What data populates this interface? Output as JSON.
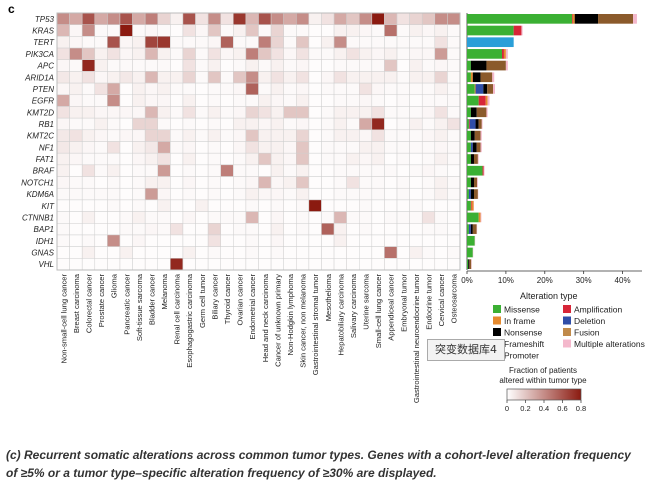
{
  "panel_label": "c",
  "caption": "(c) Recurrent somatic alterations across common tumor types. Genes with a cohort-level alteration frequency of ≥5% or a tumor type–specific alteration frequency of ≥30% are displayed.",
  "watermark_text": "突变数据库4",
  "chart_data": [
    {
      "type": "heatmap",
      "genes": [
        "TP53",
        "KRAS",
        "TERT",
        "PIK3CA",
        "APC",
        "ARID1A",
        "PTEN",
        "EGFR",
        "KMT2D",
        "RB1",
        "KMT2C",
        "NF1",
        "FAT1",
        "BRAF",
        "NOTCH1",
        "KDM6A",
        "KIT",
        "CTNNB1",
        "BAP1",
        "IDH1",
        "GNAS",
        "VHL"
      ],
      "tumor_types": [
        "Non-small-cell lung cancer",
        "Breast carcinoma",
        "Colorectal cancer",
        "Prostate cancer",
        "Glioma",
        "Pancreatic cancer",
        "Soft-tissue sarcoma",
        "Bladder cancer",
        "Melanoma",
        "Renal cell carcinoma",
        "Esophagogastric carcinoma",
        "Germ cell tumor",
        "Biliary cancer",
        "Thyroid cancer",
        "Ovarian cancer",
        "Endometrial cancer",
        "Head and neck carcinoma",
        "Cancer of unknown primary",
        "Non-Hodgkin lymphoma",
        "Skin cancer, non melanoma",
        "Gastrointestinal stromal tumor",
        "Mesothelioma",
        "Hepatobiliary carcinoma",
        "Salivary carcinoma",
        "Uterine sarcoma",
        "Small-cell lung cancer",
        "Appendiceal cancer",
        "Embryonal tumor",
        "Gastrointestinal neuroendocrine tumor",
        "Endocrine tumor",
        "Cervical cancer",
        "Osteosarcoma"
      ],
      "values": [
        [
          0.4,
          0.3,
          0.6,
          0.3,
          0.4,
          0.6,
          0.3,
          0.45,
          0.15,
          0.05,
          0.6,
          0.1,
          0.4,
          0.1,
          0.7,
          0.25,
          0.6,
          0.4,
          0.3,
          0.4,
          0.05,
          0.1,
          0.3,
          0.2,
          0.4,
          0.8,
          0.25,
          0.1,
          0.15,
          0.2,
          0.4,
          0.4
        ],
        [
          0.25,
          0.03,
          0.4,
          0.02,
          0.02,
          0.8,
          0.02,
          0.03,
          0.02,
          0.01,
          0.1,
          0.03,
          0.2,
          0.02,
          0.05,
          0.2,
          0.02,
          0.15,
          0.02,
          0.02,
          0.01,
          0.01,
          0.05,
          0.05,
          0.03,
          0.02,
          0.5,
          0.02,
          0.05,
          0.03,
          0.05,
          0.02
        ],
        [
          0.05,
          0.03,
          0.02,
          0.02,
          0.6,
          0.03,
          0.05,
          0.65,
          0.7,
          0.02,
          0.02,
          0.02,
          0.03,
          0.55,
          0.02,
          0.02,
          0.45,
          0.15,
          0.02,
          0.2,
          0.01,
          0.05,
          0.4,
          0.02,
          0.02,
          0.02,
          0.02,
          0.02,
          0.02,
          0.02,
          0.1,
          0.02
        ],
        [
          0.1,
          0.4,
          0.2,
          0.05,
          0.1,
          0.03,
          0.05,
          0.25,
          0.05,
          0.02,
          0.15,
          0.02,
          0.1,
          0.03,
          0.05,
          0.45,
          0.2,
          0.1,
          0.03,
          0.1,
          0.02,
          0.02,
          0.05,
          0.1,
          0.05,
          0.03,
          0.05,
          0.02,
          0.03,
          0.03,
          0.35,
          0.02
        ],
        [
          0.03,
          0.02,
          0.75,
          0.05,
          0.02,
          0.02,
          0.02,
          0.02,
          0.02,
          0.01,
          0.1,
          0.02,
          0.05,
          0.01,
          0.02,
          0.05,
          0.02,
          0.05,
          0.02,
          0.03,
          0.01,
          0.01,
          0.02,
          0.02,
          0.02,
          0.02,
          0.2,
          0.01,
          0.05,
          0.02,
          0.03,
          0.02
        ],
        [
          0.08,
          0.05,
          0.1,
          0.03,
          0.05,
          0.08,
          0.05,
          0.25,
          0.05,
          0.05,
          0.15,
          0.02,
          0.2,
          0.02,
          0.2,
          0.4,
          0.05,
          0.1,
          0.05,
          0.1,
          0.01,
          0.03,
          0.1,
          0.05,
          0.05,
          0.05,
          0.05,
          0.02,
          0.05,
          0.05,
          0.15,
          0.02
        ],
        [
          0.03,
          0.05,
          0.02,
          0.1,
          0.3,
          0.01,
          0.05,
          0.03,
          0.05,
          0.02,
          0.02,
          0.01,
          0.02,
          0.02,
          0.03,
          0.55,
          0.02,
          0.05,
          0.02,
          0.03,
          0.01,
          0.02,
          0.02,
          0.02,
          0.1,
          0.03,
          0.02,
          0.02,
          0.02,
          0.02,
          0.05,
          0.02
        ],
        [
          0.3,
          0.03,
          0.02,
          0.02,
          0.4,
          0.01,
          0.05,
          0.03,
          0.03,
          0.01,
          0.05,
          0.01,
          0.02,
          0.01,
          0.02,
          0.02,
          0.05,
          0.03,
          0.02,
          0.05,
          0.01,
          0.01,
          0.02,
          0.02,
          0.03,
          0.02,
          0.01,
          0.02,
          0.01,
          0.02,
          0.02,
          0.02
        ],
        [
          0.1,
          0.05,
          0.05,
          0.03,
          0.03,
          0.03,
          0.03,
          0.25,
          0.05,
          0.02,
          0.1,
          0.02,
          0.05,
          0.02,
          0.03,
          0.15,
          0.1,
          0.05,
          0.2,
          0.2,
          0.01,
          0.02,
          0.05,
          0.05,
          0.05,
          0.1,
          0.02,
          0.02,
          0.02,
          0.03,
          0.1,
          0.02
        ],
        [
          0.03,
          0.02,
          0.02,
          0.05,
          0.02,
          0.01,
          0.15,
          0.15,
          0.02,
          0.01,
          0.02,
          0.01,
          0.02,
          0.01,
          0.05,
          0.05,
          0.03,
          0.05,
          0.02,
          0.03,
          0.01,
          0.02,
          0.05,
          0.02,
          0.3,
          0.75,
          0.01,
          0.02,
          0.05,
          0.02,
          0.05,
          0.1
        ],
        [
          0.08,
          0.1,
          0.05,
          0.03,
          0.02,
          0.03,
          0.03,
          0.15,
          0.15,
          0.02,
          0.05,
          0.02,
          0.05,
          0.02,
          0.03,
          0.2,
          0.05,
          0.05,
          0.05,
          0.15,
          0.01,
          0.02,
          0.05,
          0.05,
          0.03,
          0.1,
          0.02,
          0.02,
          0.02,
          0.03,
          0.05,
          0.02
        ],
        [
          0.08,
          0.05,
          0.03,
          0.02,
          0.1,
          0.01,
          0.05,
          0.08,
          0.3,
          0.02,
          0.03,
          0.01,
          0.02,
          0.01,
          0.03,
          0.1,
          0.05,
          0.05,
          0.03,
          0.2,
          0.01,
          0.02,
          0.02,
          0.02,
          0.05,
          0.05,
          0.02,
          0.02,
          0.02,
          0.02,
          0.03,
          0.02
        ],
        [
          0.05,
          0.03,
          0.02,
          0.02,
          0.02,
          0.01,
          0.03,
          0.05,
          0.1,
          0.01,
          0.05,
          0.01,
          0.02,
          0.01,
          0.02,
          0.05,
          0.2,
          0.05,
          0.03,
          0.2,
          0.01,
          0.02,
          0.02,
          0.05,
          0.03,
          0.05,
          0.01,
          0.02,
          0.01,
          0.02,
          0.05,
          0.02
        ],
        [
          0.05,
          0.01,
          0.1,
          0.02,
          0.05,
          0.01,
          0.02,
          0.02,
          0.35,
          0.01,
          0.02,
          0.01,
          0.02,
          0.45,
          0.02,
          0.02,
          0.01,
          0.05,
          0.02,
          0.05,
          0.01,
          0.01,
          0.02,
          0.02,
          0.02,
          0.02,
          0.02,
          0.01,
          0.02,
          0.03,
          0.02,
          0.01
        ],
        [
          0.03,
          0.02,
          0.02,
          0.01,
          0.02,
          0.01,
          0.02,
          0.05,
          0.05,
          0.01,
          0.03,
          0.01,
          0.02,
          0.01,
          0.02,
          0.03,
          0.25,
          0.03,
          0.05,
          0.2,
          0.01,
          0.01,
          0.02,
          0.1,
          0.02,
          0.02,
          0.01,
          0.02,
          0.01,
          0.02,
          0.05,
          0.02
        ],
        [
          0.02,
          0.02,
          0.02,
          0.02,
          0.02,
          0.01,
          0.02,
          0.35,
          0.03,
          0.01,
          0.02,
          0.01,
          0.02,
          0.01,
          0.02,
          0.05,
          0.03,
          0.03,
          0.02,
          0.05,
          0.01,
          0.01,
          0.02,
          0.02,
          0.02,
          0.02,
          0.01,
          0.02,
          0.01,
          0.02,
          0.05,
          0.02
        ],
        [
          0.01,
          0.01,
          0.01,
          0.01,
          0.02,
          0.01,
          0.02,
          0.01,
          0.05,
          0.01,
          0.01,
          0.05,
          0.01,
          0.01,
          0.01,
          0.02,
          0.01,
          0.02,
          0.01,
          0.02,
          0.8,
          0.01,
          0.01,
          0.01,
          0.02,
          0.01,
          0.01,
          0.01,
          0.02,
          0.01,
          0.01,
          0.01
        ],
        [
          0.02,
          0.01,
          0.05,
          0.01,
          0.01,
          0.02,
          0.05,
          0.02,
          0.02,
          0.01,
          0.03,
          0.01,
          0.02,
          0.02,
          0.02,
          0.25,
          0.01,
          0.03,
          0.01,
          0.02,
          0.01,
          0.02,
          0.25,
          0.02,
          0.02,
          0.01,
          0.02,
          0.02,
          0.02,
          0.1,
          0.02,
          0.01
        ],
        [
          0.02,
          0.01,
          0.01,
          0.01,
          0.01,
          0.02,
          0.02,
          0.03,
          0.02,
          0.1,
          0.01,
          0.01,
          0.15,
          0.01,
          0.02,
          0.02,
          0.01,
          0.05,
          0.01,
          0.02,
          0.01,
          0.55,
          0.05,
          0.01,
          0.02,
          0.01,
          0.01,
          0.01,
          0.01,
          0.02,
          0.02,
          0.01
        ],
        [
          0.02,
          0.01,
          0.02,
          0.01,
          0.4,
          0.01,
          0.03,
          0.01,
          0.01,
          0.01,
          0.01,
          0.01,
          0.1,
          0.01,
          0.01,
          0.02,
          0.01,
          0.03,
          0.01,
          0.01,
          0.01,
          0.01,
          0.05,
          0.01,
          0.01,
          0.01,
          0.01,
          0.01,
          0.01,
          0.01,
          0.01,
          0.01
        ],
        [
          0.01,
          0.01,
          0.05,
          0.01,
          0.01,
          0.05,
          0.01,
          0.01,
          0.01,
          0.01,
          0.05,
          0.01,
          0.02,
          0.01,
          0.01,
          0.02,
          0.01,
          0.02,
          0.01,
          0.01,
          0.01,
          0.01,
          0.01,
          0.01,
          0.01,
          0.01,
          0.5,
          0.01,
          0.05,
          0.02,
          0.01,
          0.02
        ],
        [
          0.01,
          0.01,
          0.01,
          0.01,
          0.01,
          0.01,
          0.01,
          0.01,
          0.01,
          0.75,
          0.01,
          0.01,
          0.01,
          0.01,
          0.01,
          0.01,
          0.01,
          0.01,
          0.01,
          0.01,
          0.01,
          0.01,
          0.01,
          0.01,
          0.01,
          0.01,
          0.01,
          0.01,
          0.01,
          0.01,
          0.01,
          0.01
        ]
      ],
      "colorbar": {
        "title_lines": [
          "Fraction of patients",
          "altered within tumor type"
        ],
        "ticks": [
          "0",
          "0.2",
          "0.4",
          "0.6",
          "0.8"
        ],
        "range": [
          0,
          0.8
        ],
        "low_color": "#ffffff",
        "high_color": "#8b1a10"
      }
    },
    {
      "type": "bar",
      "orientation": "horizontal",
      "stacked": true,
      "categories": [
        "TP53",
        "KRAS",
        "TERT",
        "PIK3CA",
        "APC",
        "ARID1A",
        "PTEN",
        "EGFR",
        "KMT2D",
        "RB1",
        "KMT2C",
        "NF1",
        "FAT1",
        "BRAF",
        "NOTCH1",
        "KDM6A",
        "KIT",
        "CTNNB1",
        "BAP1",
        "IDH1",
        "GNAS",
        "VHL"
      ],
      "xlim": [
        0,
        45
      ],
      "xticks": [
        "0%",
        "10%",
        "20%",
        "30%",
        "40%"
      ],
      "legend_title": "Alteration type",
      "series": [
        {
          "name": "Missense",
          "color": "#3bb033",
          "values": [
            27.0,
            12.0,
            0.0,
            9.0,
            1.0,
            1.0,
            2.0,
            3.0,
            1.0,
            0.5,
            1.0,
            1.0,
            1.0,
            4.0,
            1.0,
            0.5,
            1.0,
            3.0,
            0.5,
            2.0,
            1.5,
            0.3
          ]
        },
        {
          "name": "Amplification",
          "color": "#d72638",
          "values": [
            0.2,
            2.0,
            0.0,
            0.5,
            0.0,
            0.0,
            0.0,
            1.8,
            0.0,
            0.2,
            0.0,
            0.0,
            0.0,
            0.3,
            0.0,
            0.0,
            0.2,
            0.0,
            0.0,
            0.0,
            0.0,
            0.0
          ]
        },
        {
          "name": "In frame",
          "color": "#e58a2e",
          "values": [
            0.5,
            0.0,
            0.0,
            0.5,
            0.0,
            0.5,
            0.2,
            0.5,
            0.0,
            0.0,
            0.0,
            0.0,
            0.0,
            0.0,
            0.0,
            0.0,
            0.5,
            0.5,
            0.0,
            0.0,
            0.0,
            0.0
          ]
        },
        {
          "name": "Deletion",
          "color": "#2f4ea8",
          "values": [
            0.0,
            0.0,
            0.0,
            0.0,
            0.0,
            0.0,
            2.0,
            0.0,
            0.0,
            1.5,
            0.0,
            0.5,
            0.0,
            0.0,
            0.0,
            0.5,
            0.0,
            0.0,
            0.5,
            0.0,
            0.0,
            0.0
          ]
        },
        {
          "name": "Nonsense",
          "color": "#000000",
          "values": [
            6.0,
            0.0,
            0.0,
            0.0,
            4.0,
            2.0,
            1.0,
            0.0,
            1.5,
            0.8,
            1.0,
            1.0,
            0.8,
            0.0,
            0.8,
            0.8,
            0.0,
            0.0,
            0.5,
            0.0,
            0.0,
            0.3
          ]
        },
        {
          "name": "Fusion",
          "color": "#c08a4a",
          "values": [
            0.0,
            0.0,
            0.0,
            0.0,
            0.0,
            0.0,
            0.0,
            0.0,
            0.0,
            0.0,
            0.0,
            0.0,
            0.0,
            0.0,
            0.0,
            0.0,
            0.0,
            0.0,
            0.0,
            0.0,
            0.0,
            0.0
          ]
        },
        {
          "name": "Frameshift",
          "color": "#8b5a2b",
          "values": [
            9.0,
            0.0,
            0.0,
            0.0,
            5.0,
            3.0,
            1.5,
            0.0,
            2.5,
            0.8,
            1.5,
            1.0,
            1.0,
            0.0,
            0.8,
            1.0,
            0.0,
            0.0,
            1.0,
            0.0,
            0.0,
            0.5
          ]
        },
        {
          "name": "Multiple alterations",
          "color": "#f4b8cc",
          "values": [
            1.0,
            0.3,
            0.0,
            0.5,
            0.5,
            0.5,
            0.5,
            0.5,
            0.3,
            0.2,
            0.3,
            0.3,
            0.2,
            0.2,
            0.2,
            0.1,
            0.1,
            0.2,
            0.1,
            0.1,
            0.1,
            0.1
          ]
        },
        {
          "name": "Promoter",
          "color": "#2a9fd8",
          "values": [
            0.0,
            0.0,
            12.0,
            0.0,
            0.0,
            0.0,
            0.0,
            0.0,
            0.0,
            0.0,
            0.0,
            0.0,
            0.0,
            0.0,
            0.0,
            0.0,
            0.0,
            0.0,
            0.0,
            0.0,
            0.0,
            0.0
          ]
        }
      ]
    }
  ]
}
